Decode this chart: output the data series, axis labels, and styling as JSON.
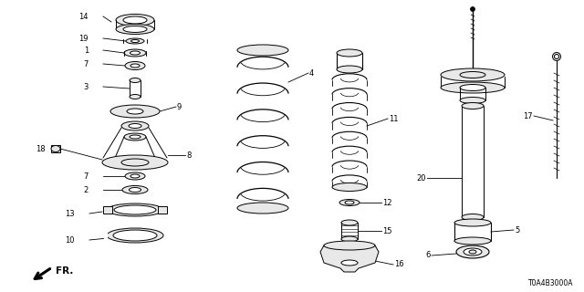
{
  "bg_color": "#ffffff",
  "line_color": "#1a1a1a",
  "diagram_code": "T0A4B3000A",
  "gray_fill": "#d0d0d0",
  "light_gray": "#e8e8e8",
  "mid_gray": "#b0b0b0"
}
